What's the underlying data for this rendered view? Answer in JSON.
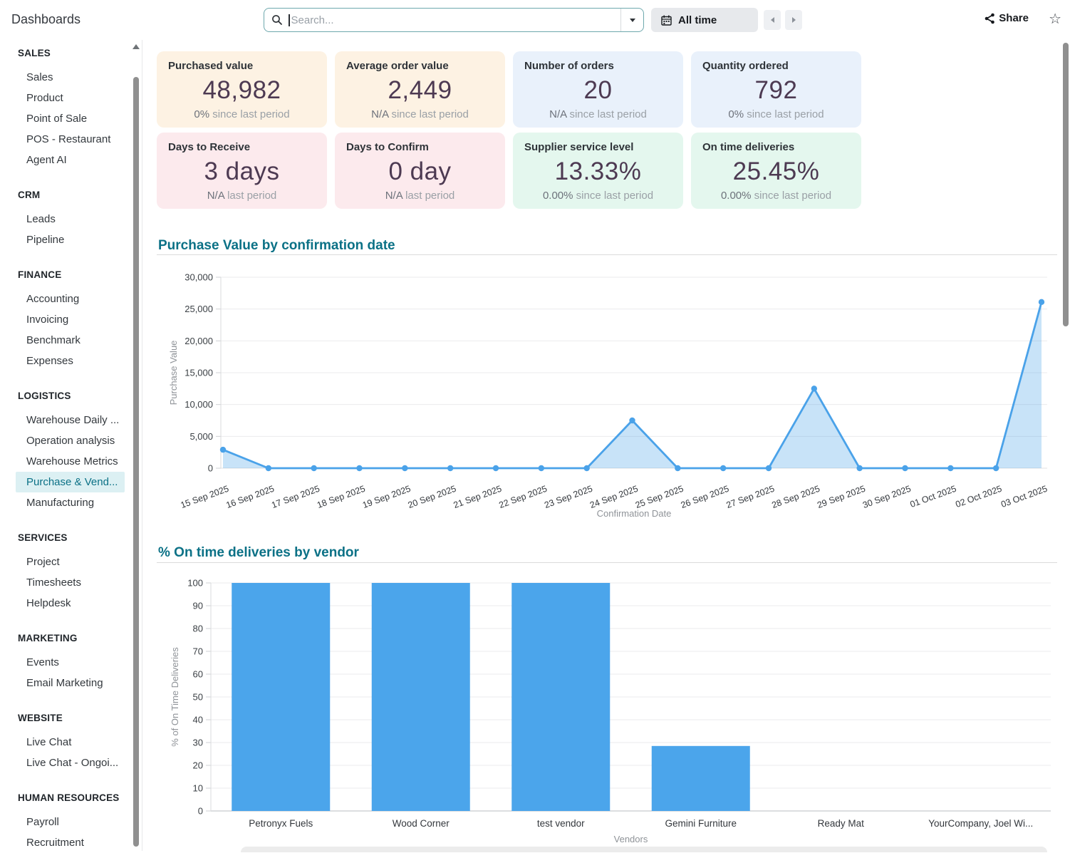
{
  "topbar": {
    "title": "Dashboards",
    "search_placeholder": "Search...",
    "time_filter_label": "All time",
    "share_label": "Share"
  },
  "sidebar": {
    "sections": [
      {
        "title": "SALES",
        "items": [
          "Sales",
          "Product",
          "Point of Sale",
          "POS - Restaurant",
          "Agent AI"
        ]
      },
      {
        "title": "CRM",
        "items": [
          "Leads",
          "Pipeline"
        ]
      },
      {
        "title": "FINANCE",
        "items": [
          "Accounting",
          "Invoicing",
          "Benchmark",
          "Expenses"
        ]
      },
      {
        "title": "LOGISTICS",
        "items": [
          "Warehouse Daily ...",
          "Operation analysis",
          "Warehouse Metrics",
          "Purchase & Vend...",
          "Manufacturing"
        ],
        "active_item": "Purchase & Vend..."
      },
      {
        "title": "SERVICES",
        "items": [
          "Project",
          "Timesheets",
          "Helpdesk"
        ]
      },
      {
        "title": "MARKETING",
        "items": [
          "Events",
          "Email Marketing"
        ]
      },
      {
        "title": "WEBSITE",
        "items": [
          "Live Chat",
          "Live Chat - Ongoi..."
        ]
      },
      {
        "title": "HUMAN RESOURCES",
        "items": [
          "Payroll",
          "Recruitment"
        ]
      }
    ]
  },
  "kpis": [
    {
      "title": "Purchased value",
      "value": "48,982",
      "delta": "0%",
      "delta_suffix": "since last period",
      "bg": "#fdf2e3"
    },
    {
      "title": "Average order value",
      "value": "2,449",
      "delta": "N/A",
      "delta_suffix": "since last period",
      "bg": "#fdf2e3"
    },
    {
      "title": "Number of orders",
      "value": "20",
      "delta": "N/A",
      "delta_suffix": "since last period",
      "bg": "#e9f1fb"
    },
    {
      "title": "Quantity ordered",
      "value": "792",
      "delta": "0%",
      "delta_suffix": "since last period",
      "bg": "#e9f1fb"
    },
    {
      "title": "Days to Receive",
      "value": "3 days",
      "delta": "N/A",
      "delta_suffix": "last period",
      "bg": "#fceaed"
    },
    {
      "title": "Days to Confirm",
      "value": "0 day",
      "delta": "N/A",
      "delta_suffix": "last period",
      "bg": "#fceaed"
    },
    {
      "title": "Supplier service level",
      "value": "13.33%",
      "delta": "0.00%",
      "delta_suffix": "since last period",
      "bg": "#e4f7ee"
    },
    {
      "title": "On time deliveries",
      "value": "25.45%",
      "delta": "0.00%",
      "delta_suffix": "since last period",
      "bg": "#e4f7ee"
    }
  ],
  "chart_data": [
    {
      "type": "area",
      "title": "Purchase Value by confirmation date",
      "x": [
        "15 Sep 2025",
        "16 Sep 2025",
        "17 Sep 2025",
        "18 Sep 2025",
        "19 Sep 2025",
        "20 Sep 2025",
        "21 Sep 2025",
        "22 Sep 2025",
        "23 Sep 2025",
        "24 Sep 2025",
        "25 Sep 2025",
        "26 Sep 2025",
        "27 Sep 2025",
        "28 Sep 2025",
        "29 Sep 2025",
        "30 Sep 2025",
        "01 Oct 2025",
        "02 Oct 2025",
        "03 Oct 2025"
      ],
      "values": [
        2900,
        0,
        0,
        0,
        0,
        0,
        0,
        0,
        0,
        7500,
        0,
        0,
        0,
        12500,
        0,
        0,
        0,
        0,
        26100
      ],
      "xlabel": "Confirmation Date",
      "ylabel": "Purchase Value",
      "ylim": [
        0,
        30000
      ],
      "ytick_step": 5000,
      "line_color": "#4aa2e9",
      "fill_opacity": 0.3,
      "grid": true,
      "legend": "none"
    },
    {
      "type": "bar",
      "title": "% On time deliveries by vendor",
      "categories": [
        "Petronyx Fuels",
        "Wood Corner",
        "test vendor",
        "Gemini Furniture",
        "Ready Mat",
        "YourCompany, Joel Wi..."
      ],
      "values": [
        100,
        100,
        100,
        28.5,
        0,
        0
      ],
      "xlabel": "Vendors",
      "ylabel": "% of On Time Deliveries",
      "ylim": [
        0,
        100
      ],
      "ytick_step": 10,
      "bar_color": "#4ba5eb",
      "grid": true,
      "legend": "none"
    }
  ]
}
